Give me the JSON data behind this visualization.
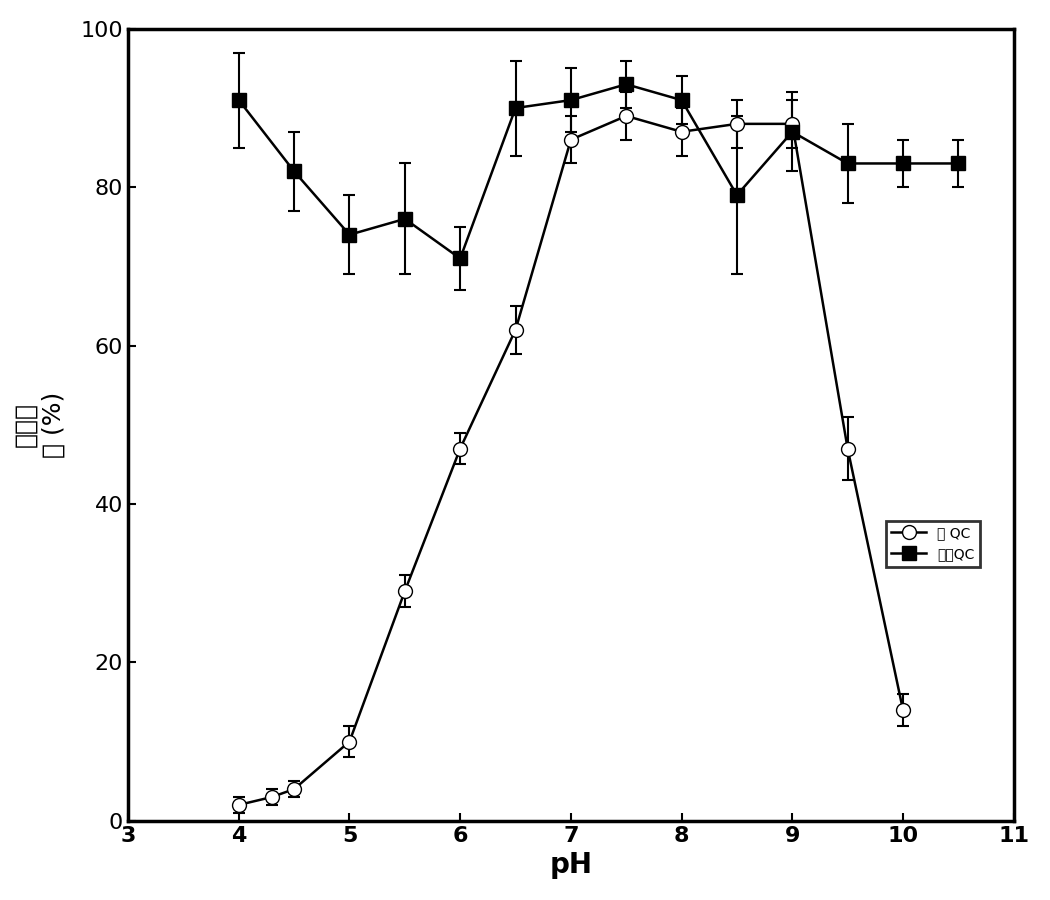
{
  "human_qc_x": [
    4.0,
    4.3,
    4.5,
    5.0,
    5.5,
    6.0,
    6.5,
    7.0,
    7.5,
    8.0,
    8.5,
    9.0,
    9.5,
    10.0
  ],
  "human_qc_y": [
    2,
    3,
    4,
    10,
    29,
    47,
    62,
    86,
    89,
    87,
    88,
    88,
    47,
    14
  ],
  "human_qc_err": [
    1,
    1,
    1,
    2,
    2,
    2,
    3,
    3,
    3,
    3,
    3,
    3,
    4,
    2
  ],
  "papaya_qc_x": [
    4.0,
    4.5,
    5.0,
    5.5,
    6.0,
    6.5,
    7.0,
    7.5,
    8.0,
    8.5,
    9.0,
    9.5,
    10.0,
    10.5
  ],
  "papaya_qc_y": [
    91,
    82,
    74,
    76,
    71,
    90,
    91,
    93,
    91,
    79,
    87,
    83,
    83,
    83
  ],
  "papaya_qc_err": [
    6,
    5,
    5,
    7,
    4,
    6,
    4,
    3,
    3,
    10,
    5,
    5,
    3,
    3
  ],
  "xlabel": "pH",
  "ylabel_line1": "残余活",
  "ylabel_line2": "性 (%)",
  "xlim": [
    3,
    11
  ],
  "ylim": [
    0,
    100
  ],
  "xticks": [
    3,
    4,
    5,
    6,
    7,
    8,
    9,
    10,
    11
  ],
  "yticks": [
    0,
    20,
    40,
    60,
    80,
    100
  ],
  "legend_human": "人 QC",
  "legend_papaya": "木瓜QC",
  "line_color": "#000000",
  "linewidth": 1.8,
  "markersize_human": 10,
  "markersize_papaya": 10,
  "xlabel_fontsize": 20,
  "ylabel_fontsize": 18,
  "tick_fontsize": 16,
  "legend_fontsize": 16
}
